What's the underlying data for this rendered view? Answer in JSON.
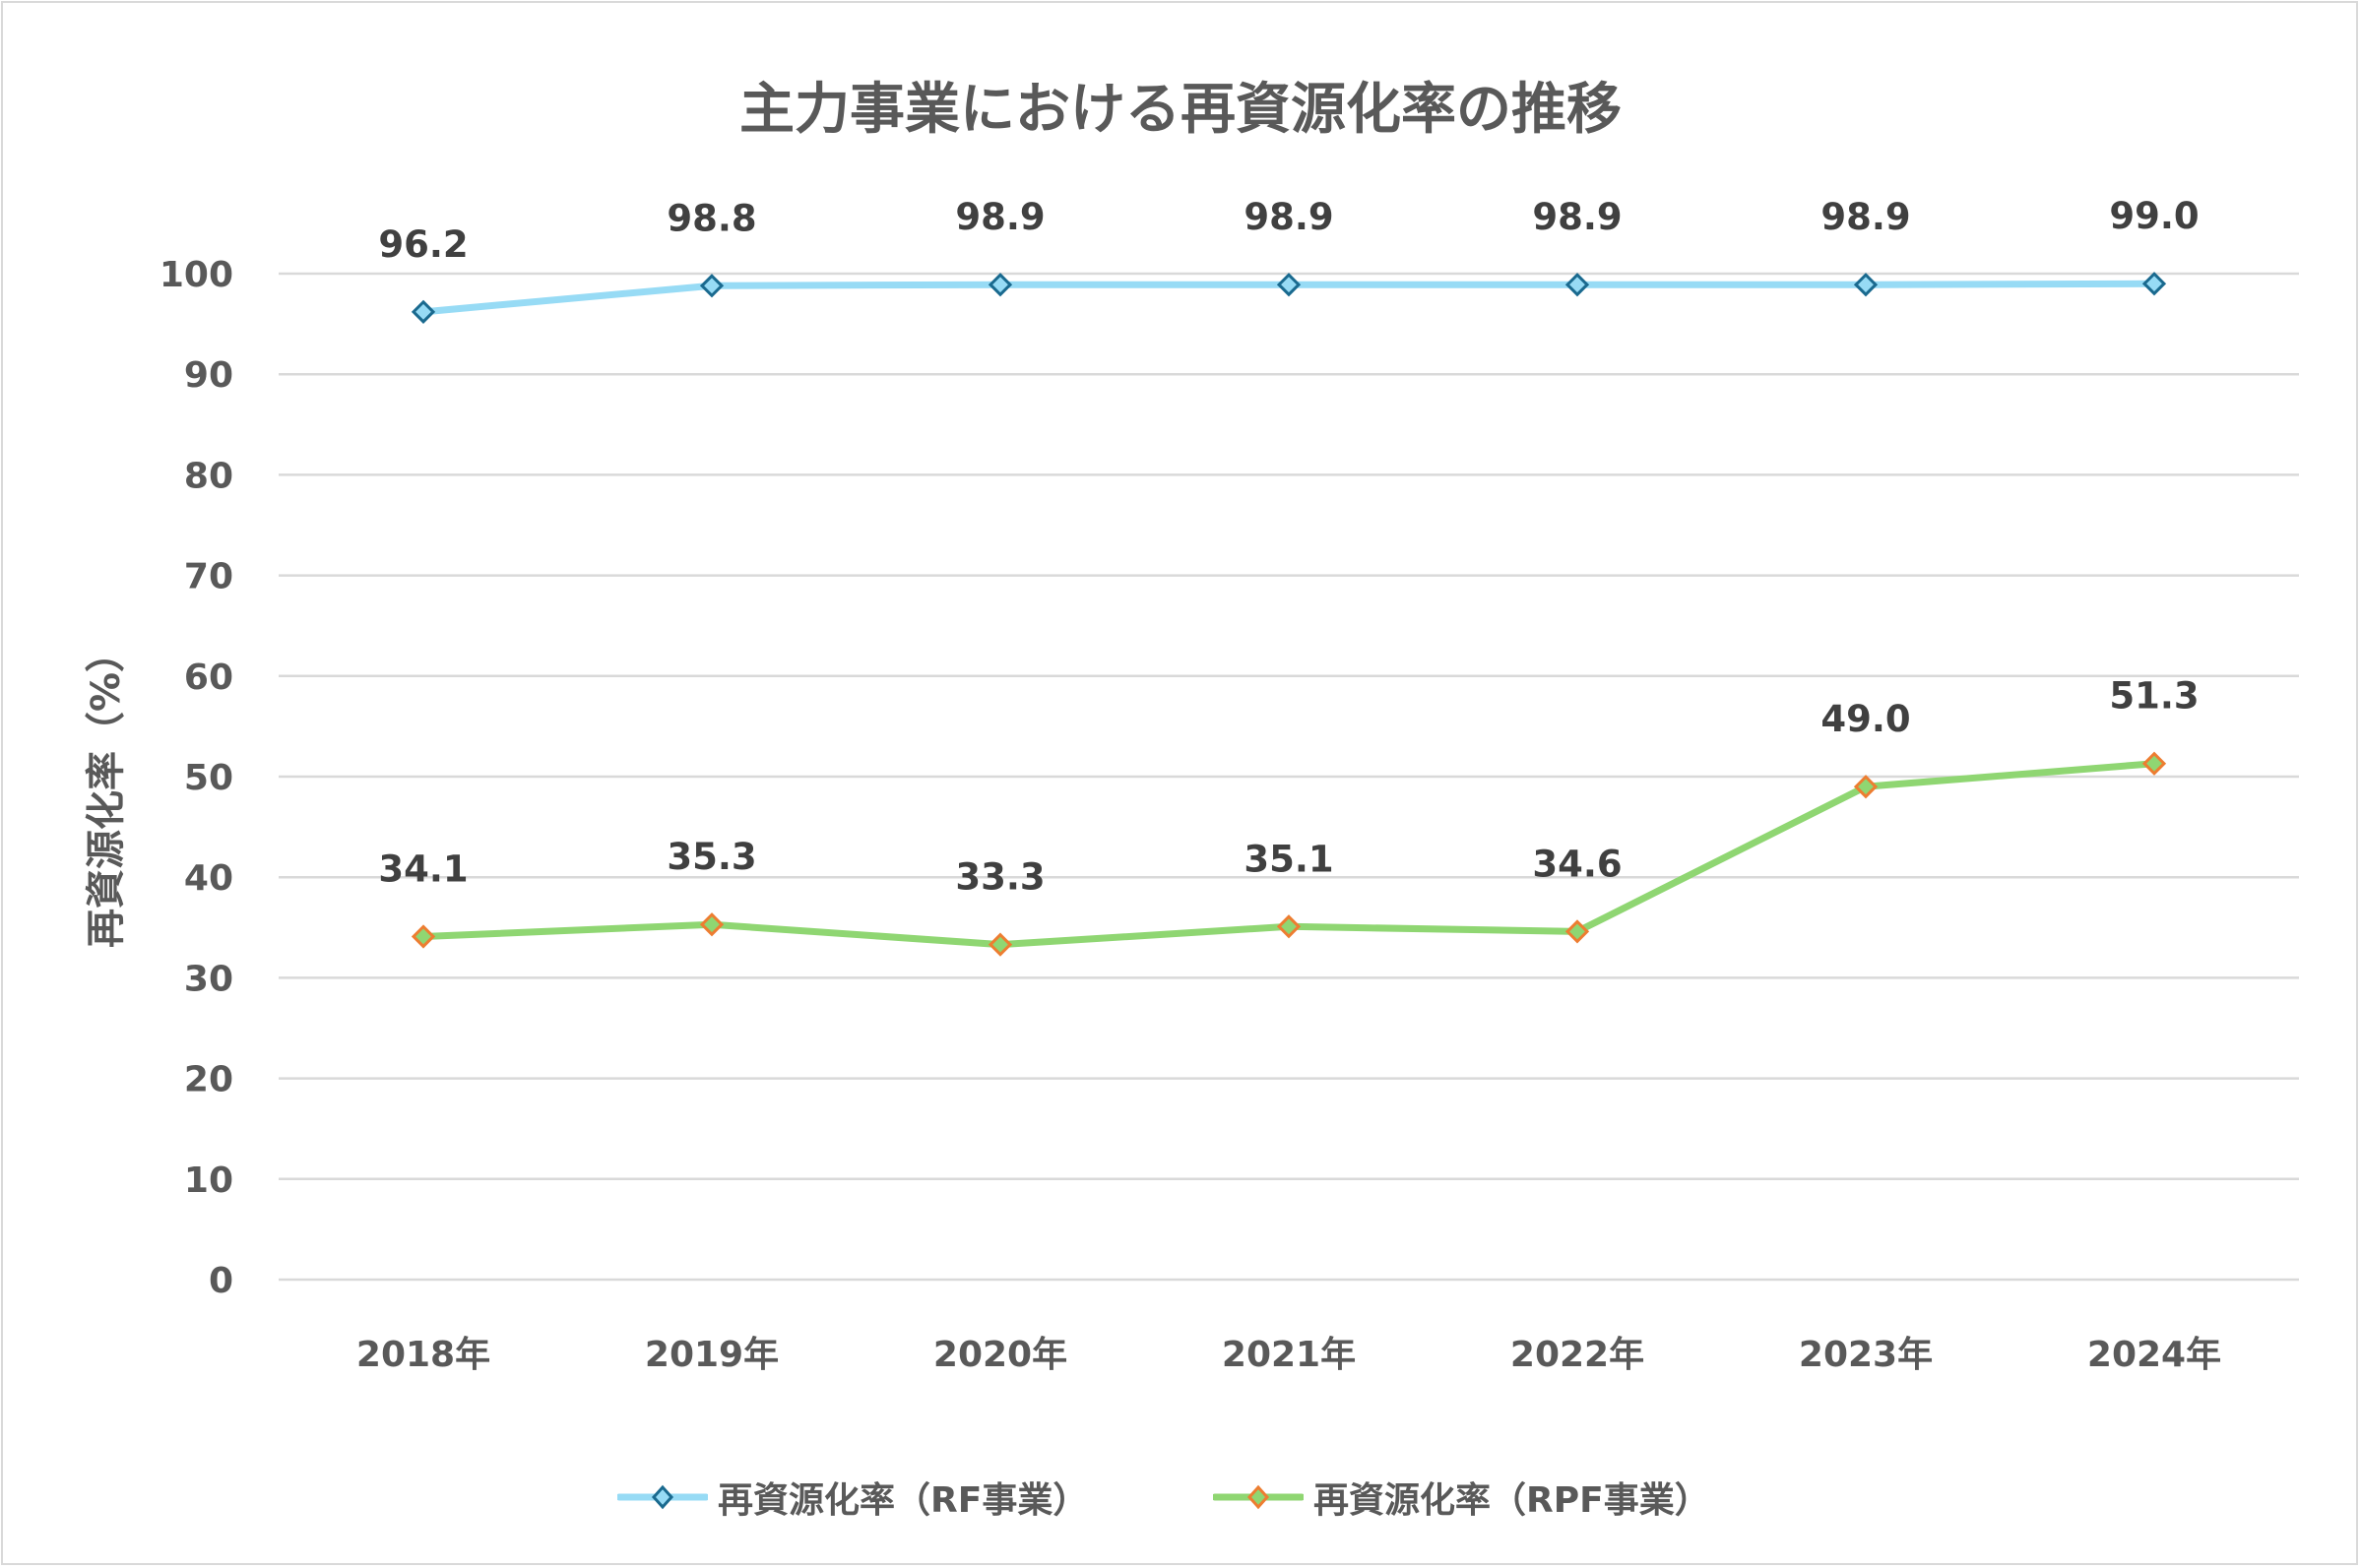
{
  "chart_data": {
    "type": "line",
    "title": "主力事業における再資源化率の推移",
    "xlabel": "",
    "ylabel": "再資源化率（%）",
    "categories": [
      "2018年",
      "2019年",
      "2020年",
      "2021年",
      "2022年",
      "2023年",
      "2024年"
    ],
    "ylim": [
      0,
      100
    ],
    "yticks": [
      0,
      10,
      20,
      30,
      40,
      50,
      60,
      70,
      80,
      90,
      100
    ],
    "grid": true,
    "legend_position": "bottom",
    "series": [
      {
        "name": "再資源化率（RF事業）",
        "values": [
          96.2,
          98.8,
          98.9,
          98.9,
          98.9,
          98.9,
          99.0
        ],
        "labels": [
          "96.2",
          "98.8",
          "98.9",
          "98.9",
          "98.9",
          "98.9",
          "99.0"
        ],
        "line_color": "#97dbf5",
        "marker_fill": "#97dbf5",
        "marker_edge": "#1a6a8f"
      },
      {
        "name": "再資源化率（RPF事業）",
        "values": [
          34.1,
          35.3,
          33.3,
          35.1,
          34.6,
          49.0,
          51.3
        ],
        "labels": [
          "34.1",
          "35.3",
          "33.3",
          "35.1",
          "34.6",
          "49.0",
          "51.3"
        ],
        "line_color": "#8fd672",
        "marker_fill": "#8fd672",
        "marker_edge": "#ed7d31"
      }
    ]
  }
}
